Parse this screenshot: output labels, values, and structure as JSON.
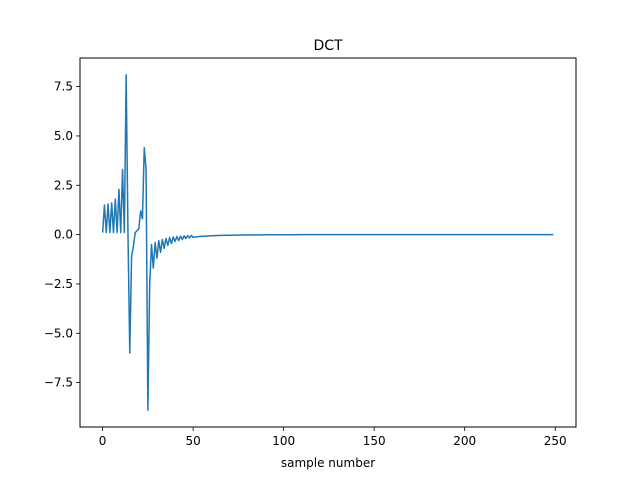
{
  "chart_data": {
    "type": "line",
    "title": "DCT",
    "xlabel": "sample number",
    "ylabel": "",
    "xlim": [
      -12.5,
      261.5
    ],
    "ylim": [
      -9.75,
      8.95
    ],
    "xticks": [
      0,
      50,
      100,
      150,
      200,
      250
    ],
    "xtick_labels": [
      "0",
      "50",
      "100",
      "150",
      "200",
      "250"
    ],
    "yticks": [
      -7.5,
      -5.0,
      -2.5,
      0.0,
      2.5,
      5.0,
      7.5
    ],
    "ytick_labels": [
      "−7.5",
      "−5.0",
      "−2.5",
      "0.0",
      "2.5",
      "5.0",
      "7.5"
    ],
    "grid": false,
    "series": [
      {
        "color": "#1f77b4",
        "x": [
          0,
          1,
          2,
          3,
          4,
          5,
          6,
          7,
          8,
          9,
          10,
          11,
          12,
          13,
          14,
          15,
          16,
          17,
          18,
          19,
          20,
          21,
          22,
          23,
          24,
          25,
          26,
          27,
          28,
          29,
          30,
          31,
          32,
          33,
          34,
          35,
          36,
          37,
          38,
          39,
          40,
          41,
          42,
          43,
          44,
          45,
          46,
          47,
          48,
          49,
          50,
          52,
          54,
          56,
          58,
          60,
          62,
          64,
          66,
          68,
          70,
          72,
          74,
          76,
          78,
          80,
          82,
          84,
          86,
          88,
          90,
          92,
          94,
          96,
          98,
          100,
          105,
          110,
          115,
          120,
          125,
          130,
          135,
          140,
          145,
          150,
          160,
          170,
          180,
          190,
          200,
          210,
          220,
          230,
          240,
          249
        ],
        "y": [
          0.1,
          1.5,
          0.1,
          1.55,
          0.1,
          1.6,
          0.1,
          1.8,
          0.1,
          2.3,
          0.1,
          3.3,
          0.1,
          8.1,
          0.1,
          -6.0,
          -1.1,
          -0.6,
          0.1,
          0.2,
          0.3,
          1.2,
          0.8,
          4.4,
          3.3,
          -8.9,
          -2.5,
          -0.5,
          -1.7,
          -0.4,
          -1.2,
          -0.3,
          -0.9,
          -0.25,
          -0.7,
          -0.2,
          -0.55,
          -0.15,
          -0.45,
          -0.12,
          -0.35,
          -0.1,
          -0.3,
          -0.08,
          -0.25,
          -0.06,
          -0.2,
          -0.05,
          -0.17,
          -0.04,
          -0.14,
          -0.11,
          -0.09,
          -0.08,
          -0.07,
          -0.06,
          -0.05,
          -0.045,
          -0.04,
          -0.035,
          -0.03,
          -0.027,
          -0.024,
          -0.021,
          -0.019,
          -0.017,
          -0.015,
          -0.013,
          -0.012,
          -0.011,
          -0.01,
          -0.009,
          -0.008,
          -0.007,
          -0.006,
          -0.005,
          -0.004,
          -0.003,
          -0.003,
          -0.002,
          -0.002,
          -0.001,
          -0.001,
          -0.001,
          -0.001,
          0.0,
          0.0,
          0.0,
          0.0,
          0.0,
          0.0,
          0.0,
          0.0,
          0.0,
          0.0,
          0.0
        ]
      }
    ]
  }
}
